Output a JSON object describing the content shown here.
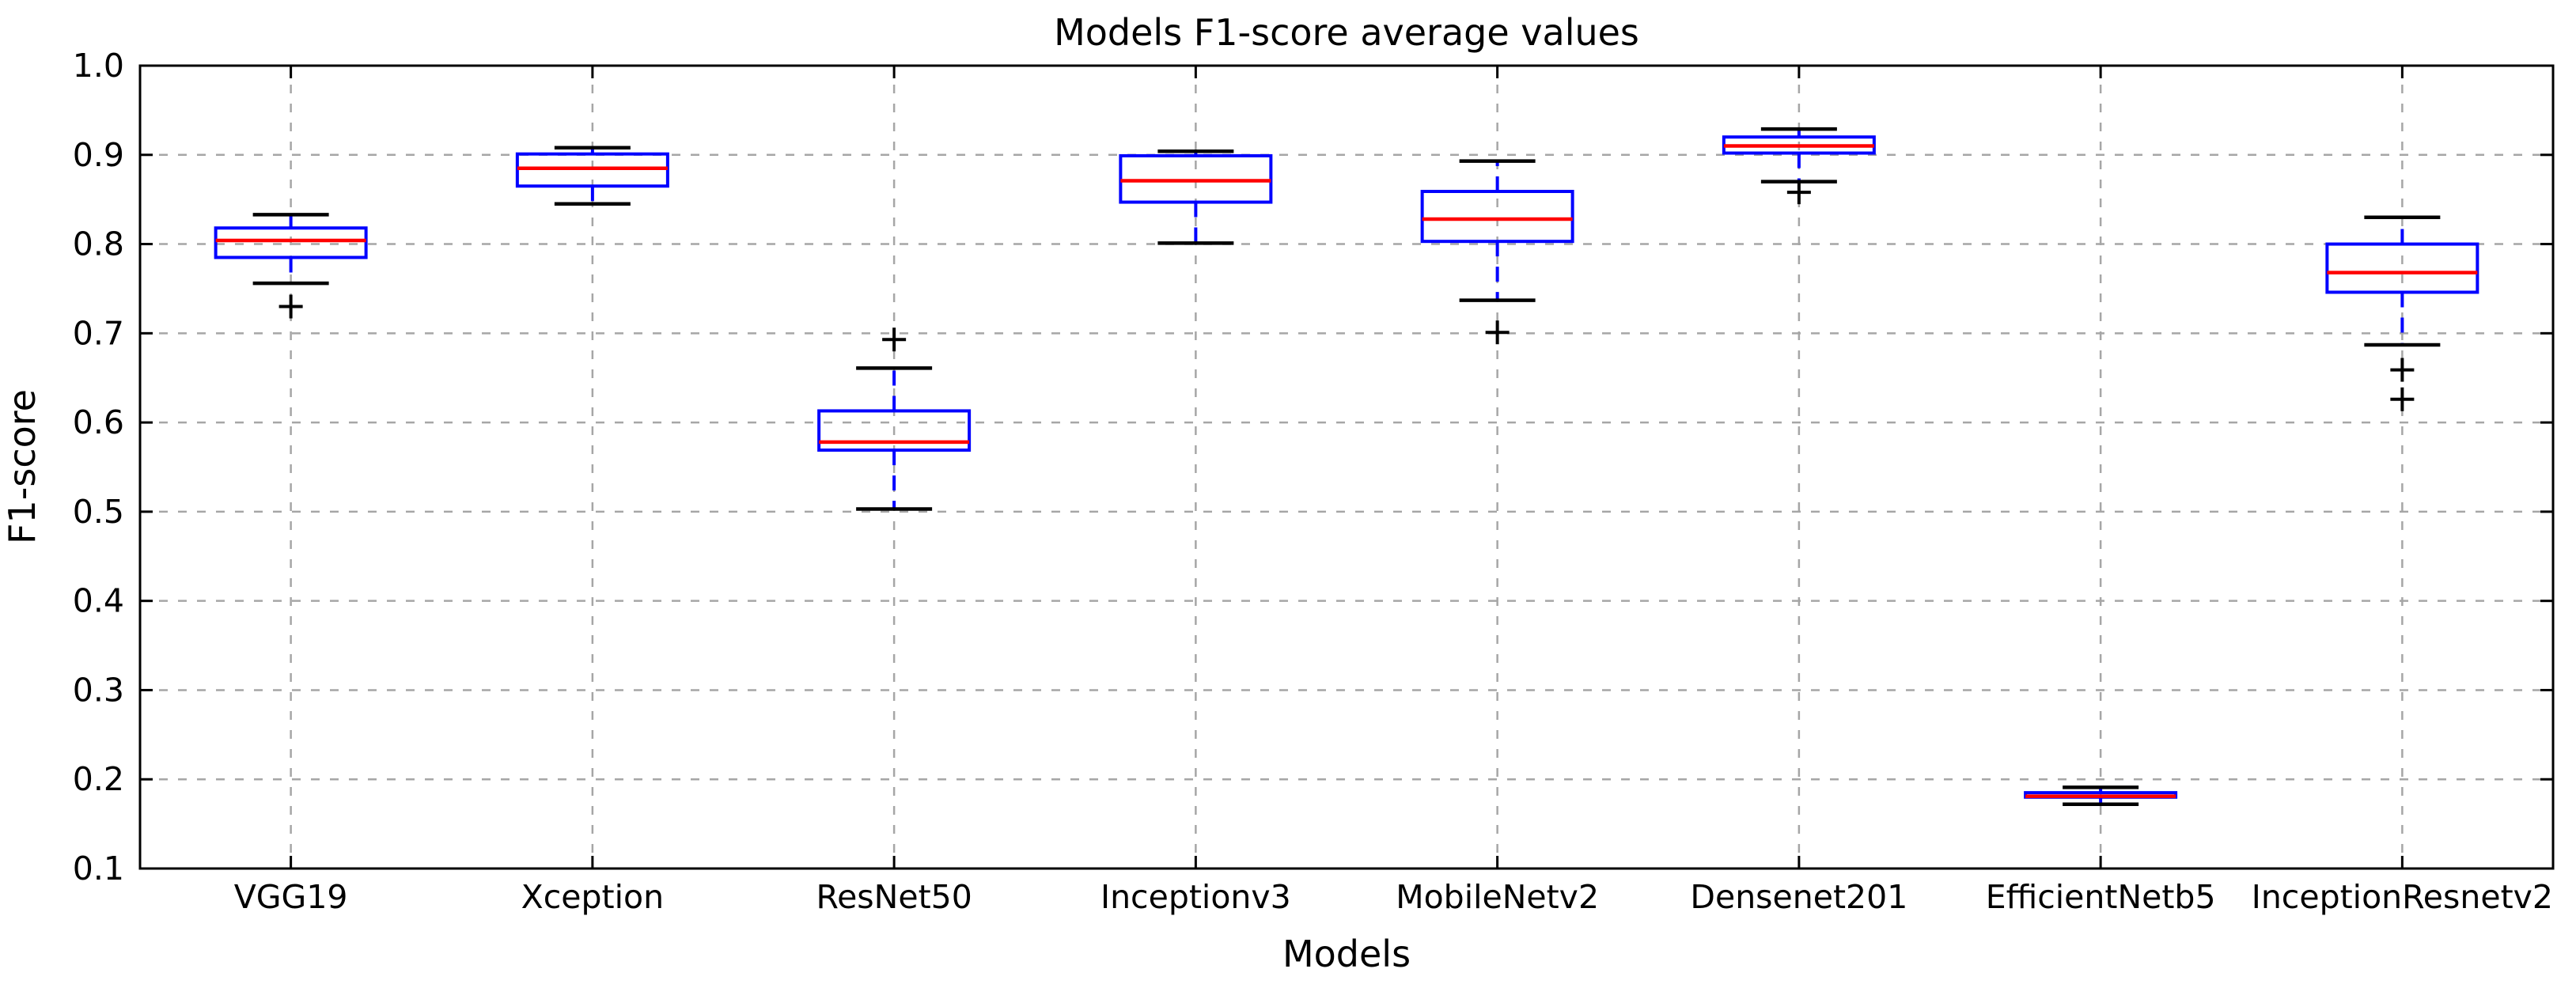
{
  "title": "Models F1-score average values",
  "axes": {
    "x_label": "Models",
    "y_label": "F1-score"
  },
  "colors": {
    "box": "#0000ff",
    "whisker": "#0000ff",
    "median": "#ff0000",
    "cap": "#000000",
    "outlier": "#000000",
    "grid": "#a6a6a6",
    "spine": "#000000",
    "text": "#000000",
    "background": "#ffffff"
  },
  "chart_data": {
    "type": "boxplot",
    "title": "Models F1-score average values",
    "xlabel": "Models",
    "ylabel": "F1-score",
    "ylim": [
      0.1,
      1.0
    ],
    "yticks": [
      1.0,
      0.9,
      0.8,
      0.7,
      0.6,
      0.5,
      0.4,
      0.3,
      0.2,
      0.1
    ],
    "ytick_labels": [
      "1.0",
      "0.9",
      "0.8",
      "0.7",
      "0.6",
      "0.5",
      "0.4",
      "0.3",
      "0.2",
      "0.1"
    ],
    "grid": true,
    "legend": false,
    "categories": [
      "VGG19",
      "Xception",
      "ResNet50",
      "Inceptionv3",
      "MobileNetv2",
      "Densenet201",
      "EfficientNetb5",
      "InceptionResnetv2"
    ],
    "series": [
      {
        "name": "VGG19",
        "whisker_low": 0.756,
        "q1": 0.785,
        "median": 0.804,
        "q3": 0.818,
        "whisker_high": 0.833,
        "outliers": [
          0.73
        ]
      },
      {
        "name": "Xception",
        "whisker_low": 0.845,
        "q1": 0.865,
        "median": 0.885,
        "q3": 0.901,
        "whisker_high": 0.908,
        "outliers": []
      },
      {
        "name": "ResNet50",
        "whisker_low": 0.503,
        "q1": 0.569,
        "median": 0.578,
        "q3": 0.613,
        "whisker_high": 0.661,
        "outliers": [
          0.693
        ]
      },
      {
        "name": "Inceptionv3",
        "whisker_low": 0.801,
        "q1": 0.847,
        "median": 0.871,
        "q3": 0.899,
        "whisker_high": 0.904,
        "outliers": []
      },
      {
        "name": "MobileNetv2",
        "whisker_low": 0.737,
        "q1": 0.803,
        "median": 0.828,
        "q3": 0.859,
        "whisker_high": 0.893,
        "outliers": [
          0.701
        ]
      },
      {
        "name": "Densenet201",
        "whisker_low": 0.87,
        "q1": 0.902,
        "median": 0.91,
        "q3": 0.92,
        "whisker_high": 0.929,
        "outliers": [
          0.858
        ]
      },
      {
        "name": "EfficientNetb5",
        "whisker_low": 0.172,
        "q1": 0.18,
        "median": 0.181,
        "q3": 0.185,
        "whisker_high": 0.191,
        "outliers": []
      },
      {
        "name": "InceptionResnetv2",
        "whisker_low": 0.687,
        "q1": 0.746,
        "median": 0.768,
        "q3": 0.8,
        "whisker_high": 0.83,
        "outliers": [
          0.659,
          0.626
        ]
      }
    ]
  }
}
